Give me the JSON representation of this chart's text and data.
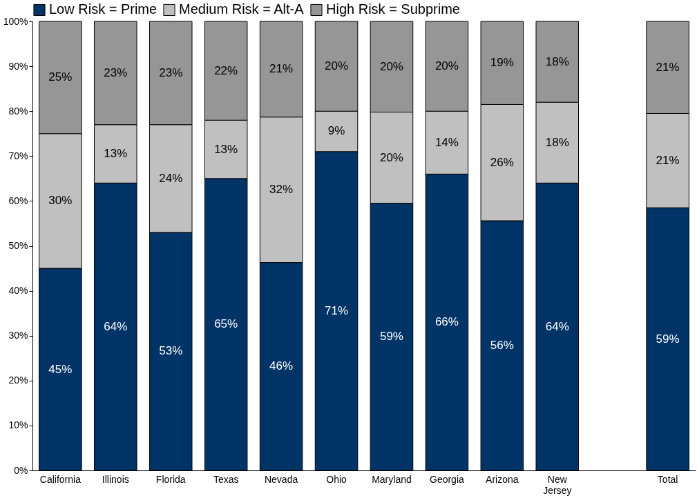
{
  "chart_data": {
    "type": "bar",
    "stacked": true,
    "legend": "top",
    "grid": false,
    "categories": [
      "California",
      "Illinois",
      "Florida",
      "Texas",
      "Nevada",
      "Ohio",
      "Maryland",
      "Georgia",
      "Arizona",
      "New Jersey",
      null,
      "Total"
    ],
    "series": [
      {
        "name": "Low Risk = Prime",
        "color": "#003366",
        "values": [
          45,
          64,
          53,
          65,
          46.3,
          71,
          59.5,
          66,
          55.6,
          64,
          null,
          58.5
        ],
        "value_labels": [
          "45%",
          "64%",
          "53%",
          "65%",
          "46%",
          "71%",
          "59%",
          "66%",
          "56%",
          "64%",
          null,
          "59%"
        ]
      },
      {
        "name": "Medium Risk = Alt-A",
        "color": "#c0c0c0",
        "values": [
          30,
          13,
          24,
          13,
          32.4,
          9,
          20.3,
          14,
          25.9,
          18,
          null,
          21
        ],
        "value_labels": [
          "30%",
          "13%",
          "24%",
          "13%",
          "32%",
          "9%",
          "20%",
          "14%",
          "26%",
          "18%",
          null,
          "21%"
        ]
      },
      {
        "name": "High Risk = Subprime",
        "color": "#969696",
        "values": [
          25,
          23,
          23,
          22,
          21.3,
          20,
          20.2,
          20,
          18.5,
          18,
          null,
          20.5
        ],
        "value_labels": [
          "25%",
          "23%",
          "23%",
          "22%",
          "21%",
          "20%",
          "20%",
          "20%",
          "19%",
          "18%",
          null,
          "21%"
        ]
      }
    ],
    "ylim": [
      0,
      100
    ],
    "yticks": [
      {
        "value": 0,
        "label": "0%"
      },
      {
        "value": 10,
        "label": "10%"
      },
      {
        "value": 20,
        "label": "20%"
      },
      {
        "value": 30,
        "label": "30%"
      },
      {
        "value": 40,
        "label": "40%"
      },
      {
        "value": 50,
        "label": "50%"
      },
      {
        "value": 60,
        "label": "60%"
      },
      {
        "value": 70,
        "label": "70%"
      },
      {
        "value": 80,
        "label": "80%"
      },
      {
        "value": 90,
        "label": "90%"
      },
      {
        "value": 100,
        "label": "100%"
      }
    ]
  }
}
